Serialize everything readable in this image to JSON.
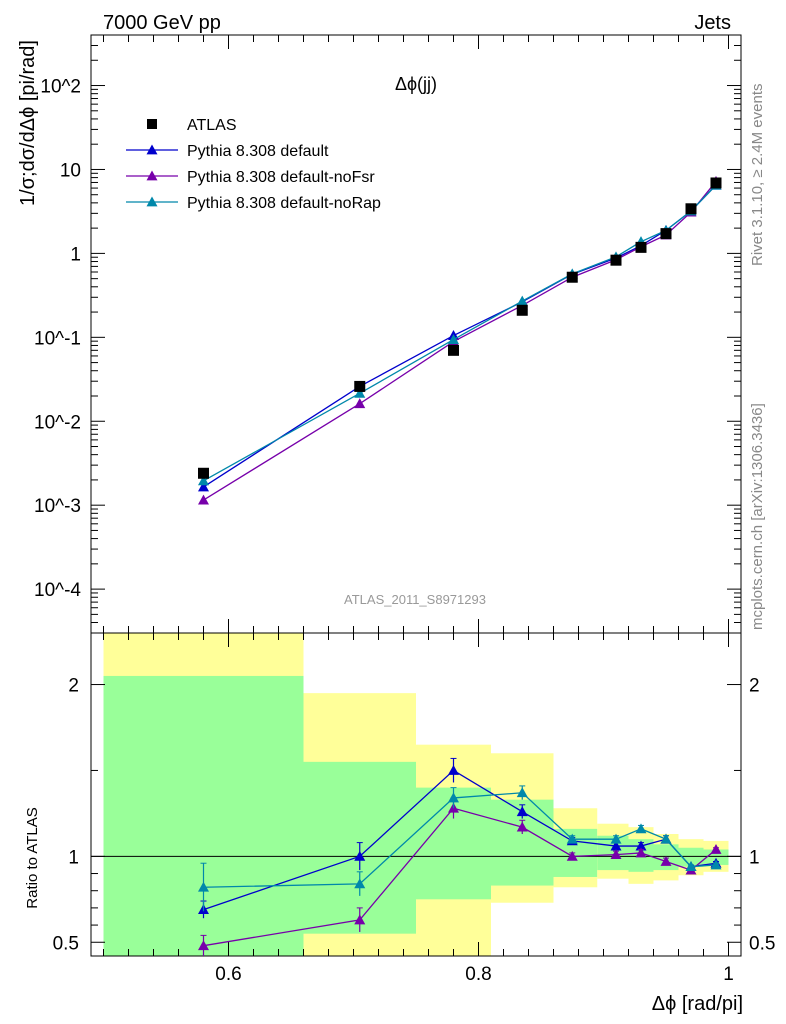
{
  "header": {
    "left": "7000 GeV pp",
    "right": "Jets"
  },
  "side_labels": {
    "rivet": "Rivet 3.1.10, ≥ 2.4M events",
    "mcplots": "mcplots.cern.ch [arXiv:1306.3436]"
  },
  "analysis_id": "ATLAS_2011_S8971293",
  "chart_data": [
    {
      "type": "line",
      "title": "Δϕ(jj)",
      "ylabel": "1/σ;dσ/dΔϕ [pi/rad]",
      "xlabel": "Δϕ [rad/pi]",
      "yscale": "log",
      "ylim": [
        3e-05,
        400
      ],
      "xlim": [
        0.49,
        1.01
      ],
      "y_tick_labels": [
        "10^-4",
        "10^-3",
        "10^-2",
        "10^-1",
        "1",
        "10",
        "10^2"
      ],
      "legend_placement": "top-left",
      "data": {
        "name": "ATLAS",
        "x": [
          0.58,
          0.705,
          0.78,
          0.835,
          0.875,
          0.91,
          0.93,
          0.95,
          0.97,
          0.99
        ],
        "y": [
          0.0024,
          0.026,
          0.07,
          0.21,
          0.52,
          0.83,
          1.18,
          1.72,
          3.4,
          6.9
        ]
      },
      "series": [
        {
          "name": "Pythia 8.308 default",
          "color": "#0000cc",
          "x": [
            0.58,
            0.705,
            0.78,
            0.835,
            0.875,
            0.91,
            0.93,
            0.95,
            0.97,
            0.99
          ],
          "y": [
            0.00165,
            0.026,
            0.105,
            0.265,
            0.565,
            0.88,
            1.24,
            1.88,
            3.2,
            6.5
          ]
        },
        {
          "name": "Pythia 8.308 default-noFsr",
          "color": "#7700aa",
          "x": [
            0.58,
            0.705,
            0.78,
            0.835,
            0.875,
            0.91,
            0.93,
            0.95,
            0.97,
            0.99
          ],
          "y": [
            0.00115,
            0.0162,
            0.089,
            0.24,
            0.52,
            0.84,
            1.2,
            1.66,
            3.1,
            7.2
          ]
        },
        {
          "name": "Pythia 8.308 default-noRap",
          "color": "#0088aa",
          "x": [
            0.58,
            0.705,
            0.78,
            0.835,
            0.875,
            0.91,
            0.93,
            0.95,
            0.97,
            0.99
          ],
          "y": [
            0.00195,
            0.0215,
            0.094,
            0.27,
            0.57,
            0.91,
            1.38,
            1.88,
            3.2,
            6.5
          ]
        }
      ]
    },
    {
      "type": "line",
      "ylabel": "Ratio to ATLAS",
      "xlabel": "Δϕ [rad/pi]",
      "ylim": [
        0.42,
        2.3
      ],
      "xlim": [
        0.49,
        1.01
      ],
      "x_ticks": [
        0.6,
        0.8,
        1
      ],
      "y_ticks": [
        0.5,
        1,
        2
      ],
      "reference_line": 1,
      "bands": {
        "edges": [
          0.5,
          0.66,
          0.75,
          0.81,
          0.86,
          0.895,
          0.92,
          0.94,
          0.96,
          0.98,
          1.0
        ],
        "yellow_low": [
          0.42,
          0.42,
          0.42,
          0.73,
          0.82,
          0.87,
          0.84,
          0.86,
          0.89,
          0.91
        ],
        "yellow_high": [
          2.35,
          1.95,
          1.65,
          1.6,
          1.28,
          1.19,
          1.17,
          1.13,
          1.1,
          1.09
        ],
        "green_low": [
          0.42,
          0.55,
          0.75,
          0.83,
          0.88,
          0.92,
          0.91,
          0.92,
          0.94,
          0.95
        ],
        "green_high": [
          2.05,
          1.55,
          1.4,
          1.33,
          1.16,
          1.12,
          1.1,
          1.07,
          1.05,
          1.04
        ]
      },
      "series": [
        {
          "name": "Pythia 8.308 default",
          "color": "#0000cc",
          "x": [
            0.58,
            0.705,
            0.78,
            0.835,
            0.875,
            0.91,
            0.93,
            0.95,
            0.97,
            0.99
          ],
          "y": [
            0.69,
            1.0,
            1.5,
            1.26,
            1.09,
            1.06,
            1.06,
            1.1,
            0.94,
            0.96
          ],
          "err": [
            0.05,
            0.08,
            0.07,
            0.04,
            0.02,
            0.02,
            0.02,
            0.02,
            0.01,
            0.01
          ]
        },
        {
          "name": "Pythia 8.308 default-noFsr",
          "color": "#7700aa",
          "x": [
            0.58,
            0.705,
            0.78,
            0.835,
            0.875,
            0.91,
            0.93,
            0.95,
            0.97,
            0.99
          ],
          "y": [
            0.48,
            0.63,
            1.28,
            1.17,
            1.0,
            1.01,
            1.02,
            0.97,
            0.92,
            1.04
          ],
          "err": [
            0.06,
            0.07,
            0.06,
            0.04,
            0.02,
            0.02,
            0.02,
            0.02,
            0.01,
            0.01
          ]
        },
        {
          "name": "Pythia 8.308 default-noRap",
          "color": "#0088aa",
          "x": [
            0.58,
            0.705,
            0.78,
            0.835,
            0.875,
            0.91,
            0.93,
            0.95,
            0.97,
            0.99
          ],
          "y": [
            0.82,
            0.84,
            1.34,
            1.37,
            1.1,
            1.1,
            1.16,
            1.1,
            0.94,
            0.95
          ],
          "err": [
            0.14,
            0.07,
            0.06,
            0.04,
            0.02,
            0.02,
            0.02,
            0.02,
            0.01,
            0.01
          ]
        }
      ]
    }
  ]
}
